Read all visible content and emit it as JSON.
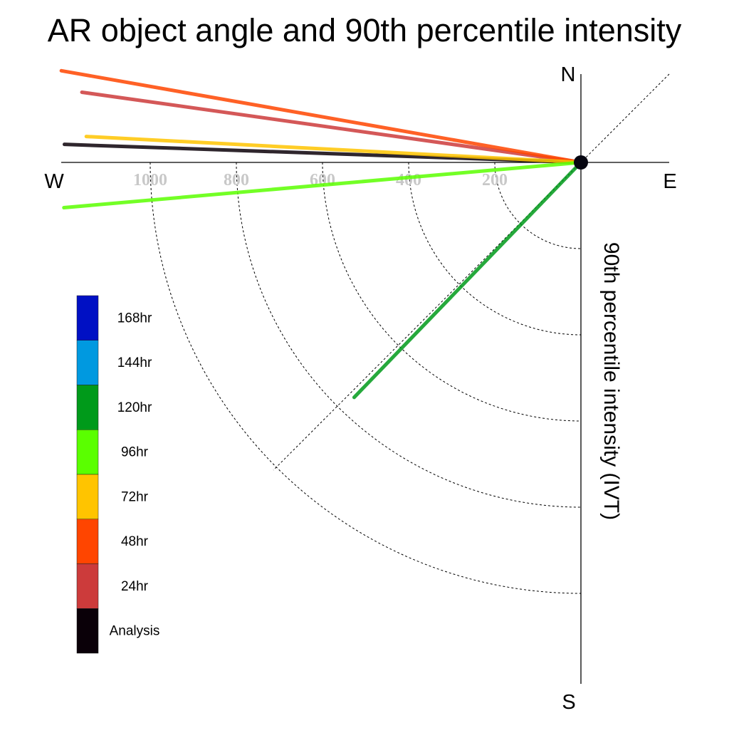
{
  "chart_data": {
    "type": "line",
    "title": "AR object angle and 90th percentile intensity",
    "ylabel": "90th percentile intensity (IVT)",
    "compass": {
      "north": "N",
      "south": "S",
      "east": "E",
      "west": "W"
    },
    "radial_ticks": [
      200,
      400,
      600,
      800,
      1000
    ],
    "radial_max": 1200,
    "grid": true,
    "legend_position": "left",
    "series": [
      {
        "name": "Analysis",
        "color": "#0a0008",
        "angle_deg": 178,
        "intensity": 1200
      },
      {
        "name": "24hr",
        "color": "#cc3b3b",
        "angle_deg": 172,
        "intensity": 1170
      },
      {
        "name": "48hr",
        "color": "#ff4500",
        "angle_deg": 170,
        "intensity": 1225
      },
      {
        "name": "72hr",
        "color": "#ffc400",
        "angle_deg": 177,
        "intensity": 1150
      },
      {
        "name": "96hr",
        "color": "#5aff00",
        "angle_deg": 185,
        "intensity": 1205
      },
      {
        "name": "120hr",
        "color": "#009a1a",
        "angle_deg": 226,
        "intensity": 758
      }
    ],
    "legend_entries": [
      {
        "label": "168hr",
        "color": "#0010c4"
      },
      {
        "label": "144hr",
        "color": "#0099e0"
      },
      {
        "label": "120hr",
        "color": "#009a1a"
      },
      {
        "label": "96hr",
        "color": "#5aff00"
      },
      {
        "label": "72hr",
        "color": "#ffc400"
      },
      {
        "label": "48hr",
        "color": "#ff4500"
      },
      {
        "label": "24hr",
        "color": "#cc3b3b"
      },
      {
        "label": "Analysis",
        "color": "#0a0008"
      }
    ]
  }
}
